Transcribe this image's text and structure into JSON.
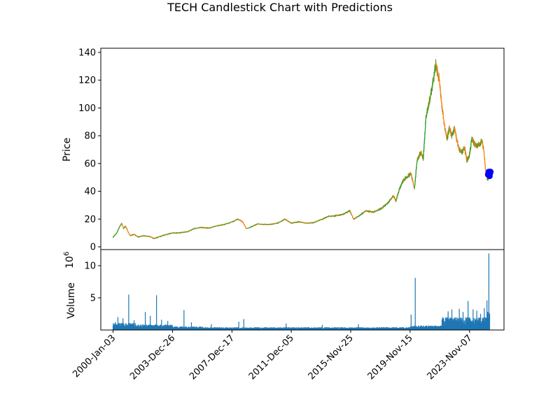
{
  "chart_data": {
    "type": "candlestick",
    "title": "TECH Candlestick Chart with Predictions",
    "price_panel": {
      "ylabel": "Price",
      "ylim": [
        -2,
        143
      ],
      "yticks": [
        0,
        20,
        40,
        60,
        80,
        100,
        120,
        140
      ],
      "up_color": "#2ca02c",
      "down_color": "#ff7f0e",
      "prediction_color": "#0000ff",
      "series": [
        [
          "2000-01-03",
          7
        ],
        [
          "2000-04-01",
          10
        ],
        [
          "2000-06-01",
          14
        ],
        [
          "2000-08-01",
          17
        ],
        [
          "2000-09-15",
          13
        ],
        [
          "2000-11-01",
          15
        ],
        [
          "2001-01-01",
          11
        ],
        [
          "2001-03-01",
          8
        ],
        [
          "2001-06-01",
          9
        ],
        [
          "2001-09-01",
          7
        ],
        [
          "2002-01-01",
          8
        ],
        [
          "2002-06-01",
          7.5
        ],
        [
          "2002-10-01",
          6
        ],
        [
          "2003-03-01",
          7.5
        ],
        [
          "2003-08-01",
          9
        ],
        [
          "2004-01-01",
          10
        ],
        [
          "2004-06-01",
          10
        ],
        [
          "2005-01-01",
          11
        ],
        [
          "2005-06-01",
          13
        ],
        [
          "2005-12-01",
          14
        ],
        [
          "2006-06-01",
          13.5
        ],
        [
          "2006-12-01",
          15
        ],
        [
          "2007-06-01",
          16
        ],
        [
          "2008-01-01",
          18
        ],
        [
          "2008-05-01",
          20
        ],
        [
          "2008-09-01",
          18
        ],
        [
          "2008-12-01",
          13
        ],
        [
          "2009-03-01",
          14
        ],
        [
          "2009-09-01",
          16.5
        ],
        [
          "2010-06-01",
          16
        ],
        [
          "2011-01-01",
          17
        ],
        [
          "2011-07-01",
          20
        ],
        [
          "2011-12-01",
          17
        ],
        [
          "2012-06-01",
          18
        ],
        [
          "2013-01-01",
          17
        ],
        [
          "2013-06-01",
          17.5
        ],
        [
          "2014-01-01",
          20
        ],
        [
          "2014-06-01",
          22
        ],
        [
          "2015-01-01",
          22.5
        ],
        [
          "2015-06-01",
          23.5
        ],
        [
          "2015-11-01",
          26
        ],
        [
          "2016-02-01",
          20
        ],
        [
          "2016-06-01",
          22
        ],
        [
          "2016-12-01",
          26
        ],
        [
          "2017-06-01",
          25
        ],
        [
          "2018-01-01",
          28
        ],
        [
          "2018-06-01",
          32
        ],
        [
          "2018-10-01",
          37
        ],
        [
          "2018-12-01",
          33
        ],
        [
          "2019-03-01",
          42
        ],
        [
          "2019-06-01",
          48
        ],
        [
          "2019-09-01",
          50
        ],
        [
          "2019-12-01",
          53
        ],
        [
          "2020-03-01",
          42
        ],
        [
          "2020-05-01",
          62
        ],
        [
          "2020-08-01",
          68
        ],
        [
          "2020-10-01",
          64
        ],
        [
          "2020-12-01",
          92
        ],
        [
          "2021-03-01",
          105
        ],
        [
          "2021-06-01",
          120
        ],
        [
          "2021-08-01",
          132
        ],
        [
          "2021-09-15",
          125
        ],
        [
          "2021-11-01",
          120
        ],
        [
          "2022-01-01",
          100
        ],
        [
          "2022-03-01",
          88
        ],
        [
          "2022-05-01",
          78
        ],
        [
          "2022-07-01",
          85
        ],
        [
          "2022-09-01",
          80
        ],
        [
          "2022-11-01",
          86
        ],
        [
          "2023-01-01",
          76
        ],
        [
          "2023-03-01",
          70
        ],
        [
          "2023-05-01",
          68
        ],
        [
          "2023-07-01",
          72
        ],
        [
          "2023-09-01",
          62
        ],
        [
          "2023-11-01",
          66
        ],
        [
          "2024-01-01",
          78
        ],
        [
          "2024-03-01",
          74
        ],
        [
          "2024-05-01",
          72
        ],
        [
          "2024-07-01",
          74
        ],
        [
          "2024-09-01",
          76
        ],
        [
          "2024-10-15",
          70
        ],
        [
          "2024-11-15",
          60
        ],
        [
          "2024-12-15",
          52
        ],
        [
          "2025-01-15",
          48
        ],
        [
          "2025-02-15",
          51
        ],
        [
          "2025-03-15",
          49
        ]
      ],
      "predictions": [
        [
          "2025-02-01",
          52
        ],
        [
          "2025-02-10",
          53
        ],
        [
          "2025-02-20",
          54
        ],
        [
          "2025-03-01",
          52
        ],
        [
          "2025-03-10",
          51
        ],
        [
          "2025-03-20",
          53
        ],
        [
          "2025-03-31",
          54
        ]
      ]
    },
    "volume_panel": {
      "ylabel": "Volume",
      "exponent_label": "1e6",
      "ylim": [
        0,
        12.5
      ],
      "yticks": [
        5,
        10
      ],
      "bar_color": "#1f77b4",
      "spikes": [
        [
          "2000-03-01",
          1.2
        ],
        [
          "2000-05-01",
          2.0
        ],
        [
          "2000-09-01",
          1.8
        ],
        [
          "2001-01-20",
          5.5
        ],
        [
          "2001-06-01",
          1.5
        ],
        [
          "2002-03-01",
          2.8
        ],
        [
          "2002-07-01",
          2.2
        ],
        [
          "2002-12-01",
          5.4
        ],
        [
          "2003-04-01",
          1.6
        ],
        [
          "2003-09-01",
          1.4
        ],
        [
          "2004-10-01",
          3.1
        ],
        [
          "2005-04-01",
          1.2
        ],
        [
          "2006-08-01",
          0.9
        ],
        [
          "2008-06-01",
          1.3
        ],
        [
          "2008-10-01",
          1.7
        ],
        [
          "2011-08-01",
          1.0
        ],
        [
          "2014-01-01",
          0.8
        ],
        [
          "2016-06-01",
          0.9
        ],
        [
          "2019-12-10",
          2.4
        ],
        [
          "2020-03-20",
          8.1
        ],
        [
          "2022-06-01",
          2.9
        ],
        [
          "2022-09-01",
          3.2
        ],
        [
          "2023-03-01",
          3.3
        ],
        [
          "2023-06-01",
          2.8
        ],
        [
          "2023-10-01",
          4.5
        ],
        [
          "2024-02-01",
          3.2
        ],
        [
          "2024-05-01",
          3.0
        ],
        [
          "2024-08-01",
          2.5
        ],
        [
          "2024-11-01",
          3.4
        ],
        [
          "2025-01-05",
          4.6
        ],
        [
          "2025-02-20",
          11.9
        ]
      ]
    },
    "x_ticks": [
      "2000-Jan-03",
      "2003-Dec-26",
      "2007-Dec-17",
      "2011-Dec-05",
      "2015-Nov-25",
      "2019-Nov-15",
      "2023-Nov-07"
    ],
    "x_range": [
      "1999-03-10",
      "2026-02-25"
    ]
  }
}
